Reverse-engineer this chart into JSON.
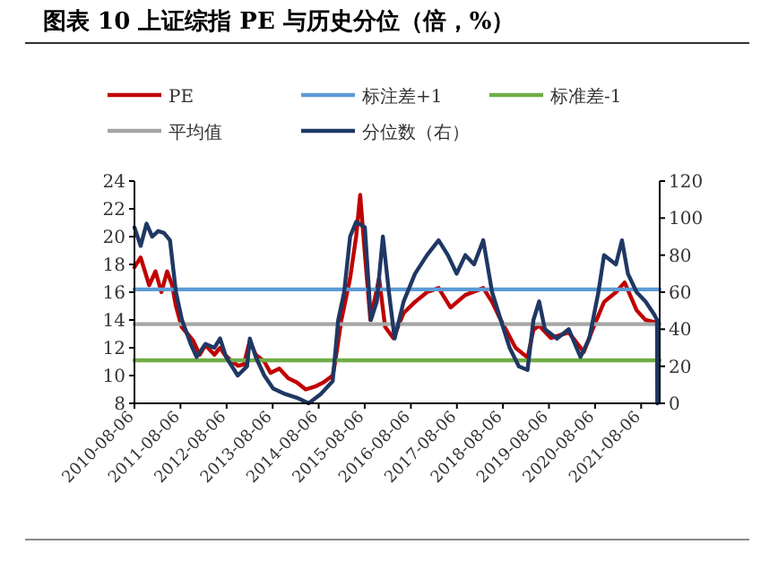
{
  "chart_data": {
    "type": "line",
    "title": "图表 10  上证综指 PE 与历史分位（倍，%）",
    "xlim": [
      "2010-08-06",
      "2021-12-31"
    ],
    "xticks": [
      "2010-08-06",
      "2011-08-06",
      "2012-08-06",
      "2013-08-06",
      "2014-08-06",
      "2015-08-06",
      "2016-08-06",
      "2017-08-06",
      "2018-08-06",
      "2019-08-06",
      "2020-08-06",
      "2021-08-06"
    ],
    "ylim": [
      8,
      24
    ],
    "yticks": [
      8,
      10,
      12,
      14,
      16,
      18,
      20,
      22,
      24
    ],
    "y2lim": [
      0,
      120
    ],
    "y2ticks": [
      0,
      20,
      40,
      60,
      80,
      100,
      120
    ],
    "legend": "top",
    "grid": false,
    "series": [
      {
        "name": "PE",
        "color": "#c00000",
        "x": [
          "2010-08-06",
          "2010-09-24",
          "2010-12-01",
          "2011-01-20",
          "2011-03-08",
          "2011-04-22",
          "2011-06-01",
          "2011-07-01",
          "2011-08-15",
          "2011-10-01",
          "2011-11-15",
          "2012-01-05",
          "2012-02-20",
          "2012-05-01",
          "2012-06-15",
          "2012-07-22",
          "2012-09-20",
          "2012-11-05",
          "2012-12-20",
          "2013-02-06",
          "2013-03-25",
          "2013-06-01",
          "2013-07-20",
          "2013-09-28",
          "2013-12-08",
          "2014-02-15",
          "2014-04-25",
          "2014-07-05",
          "2014-09-12",
          "2014-11-25",
          "2014-12-15",
          "2015-02-02",
          "2015-04-12",
          "2015-05-30",
          "2015-07-01",
          "2015-08-05",
          "2015-09-20",
          "2015-11-28",
          "2016-01-15",
          "2016-03-20",
          "2016-06-10",
          "2016-09-08",
          "2016-12-12",
          "2017-03-14",
          "2017-06-17",
          "2017-10-12",
          "2018-03-03",
          "2018-05-12",
          "2018-07-20",
          "2018-11-14",
          "2019-02-17",
          "2019-04-05",
          "2019-05-20",
          "2019-08-22",
          "2020-01-10",
          "2020-05-08",
          "2020-07-16",
          "2020-10-16",
          "2021-01-18",
          "2021-03-28",
          "2021-07-01",
          "2021-09-09",
          "2021-12-12"
        ],
        "values": [
          17.8,
          18.5,
          16.5,
          17.5,
          16,
          17.5,
          16.5,
          15,
          13.5,
          13,
          12.5,
          11.5,
          12.2,
          11.5,
          12,
          11.5,
          11,
          10.7,
          10.8,
          12.5,
          11.5,
          11,
          10.2,
          10.5,
          9.8,
          9.5,
          9,
          9.2,
          9.5,
          10,
          11,
          14,
          17,
          20,
          23,
          19,
          14,
          17,
          13.5,
          12.7,
          14.5,
          15.3,
          16,
          16.3,
          14.9,
          15.8,
          16.3,
          15.3,
          14,
          12,
          11.3,
          13.3,
          13.6,
          12.7,
          13.1,
          11.7,
          13.3,
          15.3,
          16,
          16.7,
          14.7,
          14,
          13.8
        ]
      },
      {
        "name": "标注差+1",
        "color": "#5b9bd5",
        "x": [
          "2010-08-06",
          "2021-12-31"
        ],
        "values": [
          16.2,
          16.2
        ]
      },
      {
        "name": "标准差-1",
        "color": "#70ad47",
        "x": [
          "2010-08-06",
          "2021-12-31"
        ],
        "values": [
          11.1,
          11.1
        ]
      },
      {
        "name": "平均值",
        "color": "#a6a6a6",
        "x": [
          "2010-08-06",
          "2021-12-31"
        ],
        "values": [
          13.7,
          13.7
        ]
      },
      {
        "name": "分位数（右）",
        "color": "#1f3864",
        "axis": "y2",
        "x": [
          "2010-08-06",
          "2010-09-24",
          "2010-11-10",
          "2010-12-25",
          "2011-02-10",
          "2011-03-28",
          "2011-05-15",
          "2011-07-01",
          "2011-08-18",
          "2011-10-26",
          "2011-12-12",
          "2012-02-20",
          "2012-05-01",
          "2012-06-15",
          "2012-08-02",
          "2012-11-02",
          "2013-01-15",
          "2013-02-06",
          "2013-03-25",
          "2013-06-01",
          "2013-08-10",
          "2013-11-14",
          "2014-02-15",
          "2014-05-18",
          "2014-08-22",
          "2014-11-25",
          "2015-01-08",
          "2015-02-24",
          "2015-04-12",
          "2015-05-30",
          "2015-08-07",
          "2015-09-24",
          "2015-11-10",
          "2015-12-28",
          "2016-02-14",
          "2016-03-30",
          "2016-06-10",
          "2016-09-08",
          "2016-12-12",
          "2017-03-14",
          "2017-05-26",
          "2017-08-04",
          "2017-10-12",
          "2017-12-20",
          "2018-03-03",
          "2018-05-12",
          "2018-07-20",
          "2018-09-28",
          "2018-12-10",
          "2019-02-17",
          "2019-04-05",
          "2019-05-20",
          "2019-07-05",
          "2019-10-08",
          "2020-01-10",
          "2020-04-12",
          "2020-06-21",
          "2020-09-01",
          "2020-10-16",
          "2021-01-18",
          "2021-03-07",
          "2021-04-23",
          "2021-07-01",
          "2021-09-09",
          "2021-11-17",
          "2021-12-10",
          "2021-12-12"
        ],
        "values": [
          95,
          85,
          97,
          90,
          93,
          92,
          88,
          60,
          45,
          32,
          25,
          32,
          30,
          35,
          25,
          15,
          20,
          35,
          25,
          15,
          8,
          5,
          3,
          0,
          5,
          12,
          45,
          60,
          90,
          98,
          95,
          45,
          55,
          90,
          60,
          35,
          55,
          70,
          80,
          88,
          80,
          70,
          80,
          75,
          88,
          60,
          45,
          30,
          20,
          18,
          45,
          55,
          40,
          35,
          40,
          25,
          35,
          60,
          80,
          75,
          88,
          70,
          60,
          55,
          48,
          45,
          0
        ]
      }
    ]
  }
}
